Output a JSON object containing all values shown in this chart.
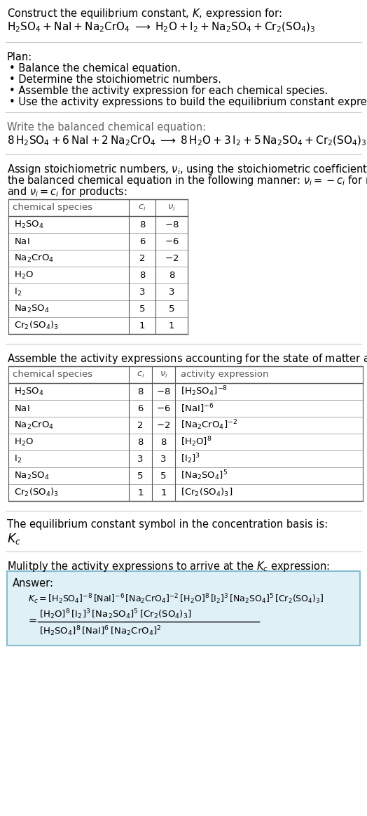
{
  "bg_color": "#ffffff",
  "text_color": "#000000",
  "fs": 10.5,
  "fs_s": 9.5,
  "fs_eq": 11.0,
  "answer_bg": "#dff0f7",
  "answer_border": "#88bbd0",
  "title_line1": "Construct the equilibrium constant, $K$, expression for:",
  "title_line2_parts": [
    "$\\mathrm{H_2SO_4 + NaI + Na_2CrO_4 \\;\\longrightarrow\\; H_2O + I_2 + Na_2SO_4 + Cr_2(SO_4)_3}$"
  ],
  "plan_header": "Plan:",
  "plan_items": [
    "\\bullet\\; Balance the chemical equation.",
    "\\bullet\\; Determine the stoichiometric numbers.",
    "\\bullet\\; Assemble the activity expression for each chemical species.",
    "\\bullet\\; Use the activity expressions to build the equilibrium constant expression."
  ],
  "balanced_header": "Write the balanced chemical equation:",
  "balanced_eq": "$8\\,\\mathrm{H_2SO_4} + 6\\,\\mathrm{NaI} + 2\\,\\mathrm{Na_2CrO_4} \\;\\longrightarrow\\; 8\\,\\mathrm{H_2O} + 3\\,\\mathrm{I_2} + 5\\,\\mathrm{Na_2SO_4} + \\mathrm{Cr_2(SO_4)_3}$",
  "stoich_text": [
    "Assign stoichiometric numbers, $\\nu_i$, using the stoichiometric coefficients, $c_i$, from",
    "the balanced chemical equation in the following manner: $\\nu_i = -c_i$ for reactants",
    "and $\\nu_i = c_i$ for products:"
  ],
  "table1_headers": [
    "chemical species",
    "$c_i$",
    "$\\nu_i$"
  ],
  "table1_data": [
    [
      "$\\mathrm{H_2SO_4}$",
      "8",
      "$-8$"
    ],
    [
      "$\\mathrm{NaI}$",
      "6",
      "$-6$"
    ],
    [
      "$\\mathrm{Na_2CrO_4}$",
      "2",
      "$-2$"
    ],
    [
      "$\\mathrm{H_2O}$",
      "8",
      "8"
    ],
    [
      "$\\mathrm{I_2}$",
      "3",
      "3"
    ],
    [
      "$\\mathrm{Na_2SO_4}$",
      "5",
      "5"
    ],
    [
      "$\\mathrm{Cr_2(SO_4)_3}$",
      "1",
      "1"
    ]
  ],
  "activity_text": "Assemble the activity expressions accounting for the state of matter and $\\nu_i$:",
  "table2_headers": [
    "chemical species",
    "$c_i$",
    "$\\nu_i$",
    "activity expression"
  ],
  "table2_data": [
    [
      "$\\mathrm{H_2SO_4}$",
      "8",
      "$-8$",
      "$[\\mathrm{H_2SO_4}]^{-8}$"
    ],
    [
      "$\\mathrm{NaI}$",
      "6",
      "$-6$",
      "$[\\mathrm{NaI}]^{-6}$"
    ],
    [
      "$\\mathrm{Na_2CrO_4}$",
      "2",
      "$-2$",
      "$[\\mathrm{Na_2CrO_4}]^{-2}$"
    ],
    [
      "$\\mathrm{H_2O}$",
      "8",
      "8",
      "$[\\mathrm{H_2O}]^{8}$"
    ],
    [
      "$\\mathrm{I_2}$",
      "3",
      "3",
      "$[\\mathrm{I_2}]^{3}$"
    ],
    [
      "$\\mathrm{Na_2SO_4}$",
      "5",
      "5",
      "$[\\mathrm{Na_2SO_4}]^{5}$"
    ],
    [
      "$\\mathrm{Cr_2(SO_4)_3}$",
      "1",
      "1",
      "$[\\mathrm{Cr_2(SO_4)_3}]$"
    ]
  ],
  "kc_header": "The equilibrium constant symbol in the concentration basis is:",
  "kc_symbol": "$K_c$",
  "multiply_header": "Mulitply the activity expressions to arrive at the $K_c$ expression:",
  "answer_label": "Answer:",
  "kc_eq_line1": "$K_c = [\\mathrm{H_2SO_4}]^{-8}\\,[\\mathrm{NaI}]^{-6}\\,[\\mathrm{Na_2CrO_4}]^{-2}\\,[\\mathrm{H_2O}]^{8}\\,[\\mathrm{I_2}]^{3}\\,[\\mathrm{Na_2SO_4}]^{5}\\,[\\mathrm{Cr_2(SO_4)_3}]$",
  "kc_numerator": "$[\\mathrm{H_2O}]^{8}\\,[\\mathrm{I_2}]^{3}\\,[\\mathrm{Na_2SO_4}]^{5}\\,[\\mathrm{Cr_2(SO_4)_3}]$",
  "kc_denominator": "$[\\mathrm{H_2SO_4}]^{8}\\,[\\mathrm{NaI}]^{6}\\,[\\mathrm{Na_2CrO_4}]^{2}$"
}
